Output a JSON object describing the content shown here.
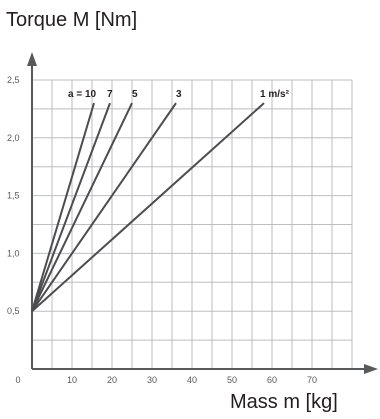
{
  "chart_data": {
    "type": "line",
    "ylabel": "Torque M [Nm]",
    "xlabel": "Mass m [kg]",
    "xlim": [
      0,
      80
    ],
    "ylim": [
      0,
      2.5
    ],
    "x_ticks": [
      "0",
      "10",
      "20",
      "30",
      "40",
      "50",
      "60",
      "70"
    ],
    "y_ticks": [
      "0,5",
      "1,0",
      "1,5",
      "2,0",
      "2,5"
    ],
    "grid": true,
    "series": [
      {
        "name": "a = 10",
        "x": [
          0,
          15.5
        ],
        "y": [
          0.5,
          2.3
        ]
      },
      {
        "name": "7",
        "x": [
          0,
          19.5
        ],
        "y": [
          0.5,
          2.3
        ]
      },
      {
        "name": "5",
        "x": [
          0,
          25
        ],
        "y": [
          0.5,
          2.3
        ]
      },
      {
        "name": "3",
        "x": [
          0,
          36
        ],
        "y": [
          0.5,
          2.3
        ]
      },
      {
        "name": "1 m/s²",
        "x": [
          0,
          58
        ],
        "y": [
          0.5,
          2.3
        ]
      }
    ]
  }
}
